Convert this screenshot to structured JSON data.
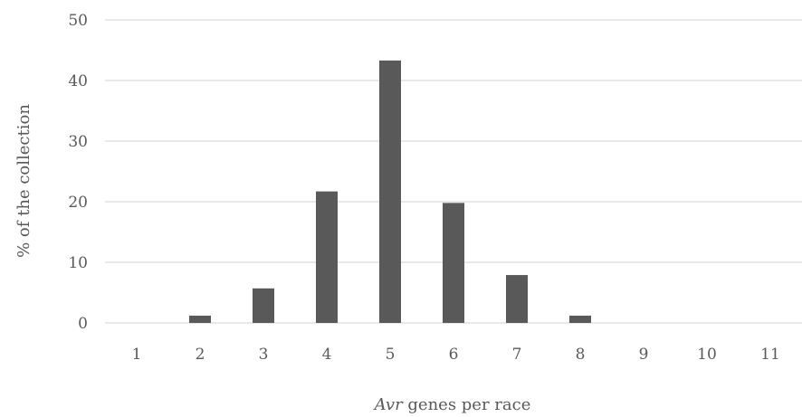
{
  "chart_data": {
    "type": "bar",
    "categories": [
      "1",
      "2",
      "3",
      "4",
      "5",
      "6",
      "7",
      "8",
      "9",
      "10",
      "11"
    ],
    "values": [
      0,
      1.2,
      5.7,
      21.7,
      43.3,
      19.8,
      7.9,
      1.2,
      0,
      0,
      0
    ],
    "ylim": [
      0,
      50
    ],
    "yticks": [
      "0",
      "10",
      "20",
      "30",
      "40",
      "50"
    ],
    "xlabel": {
      "italic": "Avr",
      "rest": " genes per race"
    },
    "ylabel": "% of the collection",
    "grid": true,
    "legend": "none",
    "colors": {
      "bar": "#595959",
      "grid": "#d9d9d9",
      "text": "#595959"
    }
  }
}
